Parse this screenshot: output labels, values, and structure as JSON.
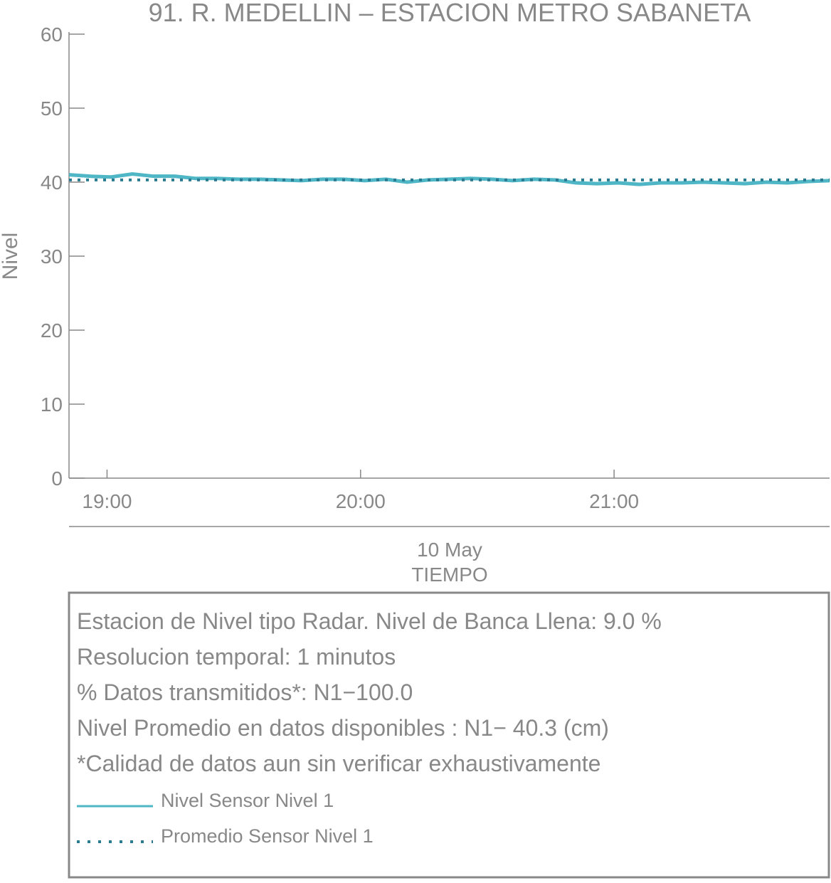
{
  "chart_data": {
    "type": "line",
    "title": "91. R. MEDELLIN – ESTACION METRO SABANETA",
    "y_label": "Nivel",
    "x_label": "TIEMPO",
    "date_label": "10 May",
    "x": [
      "18:51",
      "18:56",
      "19:01",
      "19:06",
      "19:11",
      "19:16",
      "19:21",
      "19:26",
      "19:31",
      "19:36",
      "19:41",
      "19:46",
      "19:51",
      "19:56",
      "20:01",
      "20:06",
      "20:11",
      "20:16",
      "20:21",
      "20:26",
      "20:31",
      "20:36",
      "20:41",
      "20:46",
      "20:51",
      "20:56",
      "21:01",
      "21:06",
      "21:11",
      "21:16",
      "21:21",
      "21:26",
      "21:31",
      "21:36",
      "21:41",
      "21:46",
      "21:51"
    ],
    "series": [
      {
        "name": "Nivel Sensor Nivel 1",
        "color": "#4fb6c6",
        "style": "solid",
        "values": [
          41.0,
          40.8,
          40.7,
          41.1,
          40.8,
          40.8,
          40.5,
          40.5,
          40.4,
          40.4,
          40.3,
          40.2,
          40.4,
          40.4,
          40.2,
          40.4,
          40.0,
          40.3,
          40.4,
          40.5,
          40.4,
          40.2,
          40.4,
          40.3,
          39.9,
          39.8,
          39.9,
          39.7,
          39.9,
          39.9,
          40.0,
          39.9,
          39.8,
          40.0,
          39.9,
          40.1,
          40.2
        ]
      },
      {
        "name": "Promedio Sensor Nivel 1",
        "color": "#2a7a92",
        "style": "dotted",
        "x": [
          "18:51",
          "21:51"
        ],
        "values": [
          40.3,
          40.3
        ]
      }
    ],
    "xlim": [
      "18:51",
      "21:51"
    ],
    "xticks": [
      "19:00",
      "20:00",
      "21:00"
    ],
    "ylim": [
      0,
      60
    ],
    "yticks": [
      0,
      10,
      20,
      30,
      40,
      50,
      60
    ],
    "info": [
      "Estacion de Nivel tipo Radar. Nivel de Banca Llena:  9.0 %",
      "Resolucion temporal: 1 minutos",
      "% Datos transmitidos*: N1−100.0",
      "Nivel Promedio en datos disponibles : N1− 40.3 (cm)",
      "*Calidad de datos aun sin verificar exhaustivamente"
    ]
  }
}
